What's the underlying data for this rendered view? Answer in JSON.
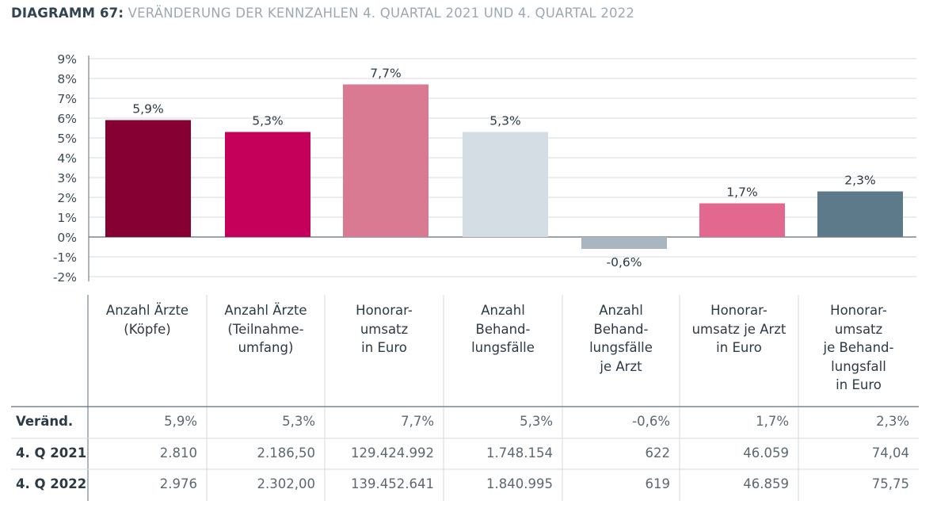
{
  "title": {
    "prefix": "DIAGRAMM 67:",
    "text": "VERÄNDERUNG DER KENNZAHLEN 4. QUARTAL 2021 UND 4. QUARTAL 2022"
  },
  "chart_data": {
    "type": "bar",
    "categories": [
      "Anzahl Ärzte (Köpfe)",
      "Anzahl Ärzte (Teilnahme-umfang)",
      "Honorar-umsatz in Euro",
      "Anzahl Behand-lungsfälle",
      "Anzahl Behand-lungsfälle je Arzt",
      "Honorar-umsatz je Arzt in Euro",
      "Honorar-umsatz je Behand-lungsfall in Euro"
    ],
    "values": [
      5.9,
      5.3,
      7.7,
      5.3,
      -0.6,
      1.7,
      2.3
    ],
    "value_labels": [
      "5,9%",
      "5,3%",
      "7,7%",
      "5,3%",
      "-0,6%",
      "1,7%",
      "2,3%"
    ],
    "colors": [
      "#870034",
      "#c4005a",
      "#d97a92",
      "#d3dde3",
      "#a9b6bf",
      "#e36890",
      "#5c7a8a"
    ],
    "ylim": [
      -2,
      9
    ],
    "yticks": [
      "9%",
      "8%",
      "7%",
      "6%",
      "5%",
      "4%",
      "3%",
      "2%",
      "1%",
      "0%",
      "-1%",
      "-2%"
    ],
    "grid": true
  },
  "table": {
    "headers": [
      [
        "Anzahl Ärzte",
        "(Köpfe)"
      ],
      [
        "Anzahl Ärzte",
        "(Teilnahme-",
        "umfang)"
      ],
      [
        "Honorar-",
        "umsatz",
        "in Euro"
      ],
      [
        "Anzahl",
        "Behand-",
        "lungsfälle"
      ],
      [
        "Anzahl",
        "Behand-",
        "lungsfälle",
        "je Arzt"
      ],
      [
        "Honorar-",
        "umsatz je Arzt",
        "in Euro"
      ],
      [
        "Honorar-",
        "umsatz",
        "je Behand-",
        "lungsfall",
        "in Euro"
      ]
    ],
    "rows": [
      {
        "label": "Veränd.",
        "cells": [
          "5,9%",
          "5,3%",
          "7,7%",
          "5,3%",
          "-0,6%",
          "1,7%",
          "2,3%"
        ]
      },
      {
        "label": "4. Q 2021",
        "cells": [
          "2.810",
          "2.186,50",
          "129.424.992",
          "1.748.154",
          "622",
          "46.059",
          "74,04"
        ]
      },
      {
        "label": "4. Q 2022",
        "cells": [
          "2.976",
          "2.302,00",
          "139.452.641",
          "1.840.995",
          "619",
          "46.859",
          "75,75"
        ]
      }
    ]
  }
}
